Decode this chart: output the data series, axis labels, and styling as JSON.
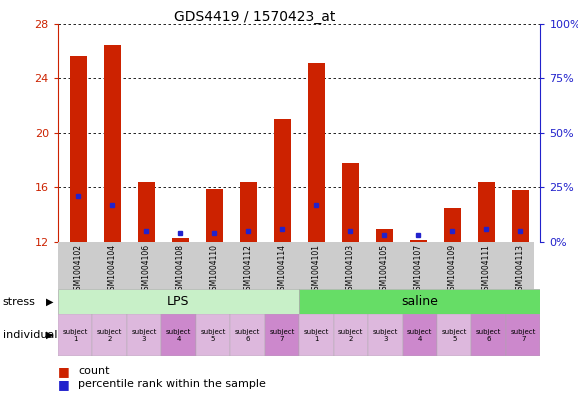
{
  "title": "GDS4419 / 1570423_at",
  "samples": [
    "GSM1004102",
    "GSM1004104",
    "GSM1004106",
    "GSM1004108",
    "GSM1004110",
    "GSM1004112",
    "GSM1004114",
    "GSM1004101",
    "GSM1004103",
    "GSM1004105",
    "GSM1004107",
    "GSM1004109",
    "GSM1004111",
    "GSM1004113"
  ],
  "red_values": [
    25.6,
    26.4,
    16.4,
    12.3,
    15.9,
    16.4,
    21.0,
    25.1,
    17.8,
    12.9,
    12.1,
    14.5,
    16.4,
    15.8
  ],
  "blue_percentile": [
    21,
    17,
    5,
    4,
    4,
    5,
    6,
    17,
    5,
    3,
    3,
    5,
    6,
    5
  ],
  "ymin": 12,
  "ymax": 28,
  "yticks_left": [
    12,
    16,
    20,
    24,
    28
  ],
  "yticks_right": [
    0,
    25,
    50,
    75,
    100
  ],
  "lps_color": "#c8f0c8",
  "saline_color": "#66dd66",
  "individual_colors": [
    "#ddb8dd",
    "#ddb8dd",
    "#ddb8dd",
    "#cc88cc",
    "#ddb8dd",
    "#ddb8dd",
    "#cc88cc",
    "#ddb8dd",
    "#ddb8dd",
    "#ddb8dd",
    "#cc88cc",
    "#ddb8dd",
    "#cc88cc",
    "#cc88cc"
  ],
  "individual_labels": [
    "subject\n1",
    "subject\n2",
    "subject\n3",
    "subject\n4",
    "subject\n5",
    "subject\n6",
    "subject\n7",
    "subject\n1",
    "subject\n2",
    "subject\n3",
    "subject\n4",
    "subject\n5",
    "subject\n6",
    "subject\n7"
  ],
  "red_color": "#cc2200",
  "blue_color": "#2222cc",
  "bar_width": 0.5,
  "xticklabel_bg": "#cccccc"
}
